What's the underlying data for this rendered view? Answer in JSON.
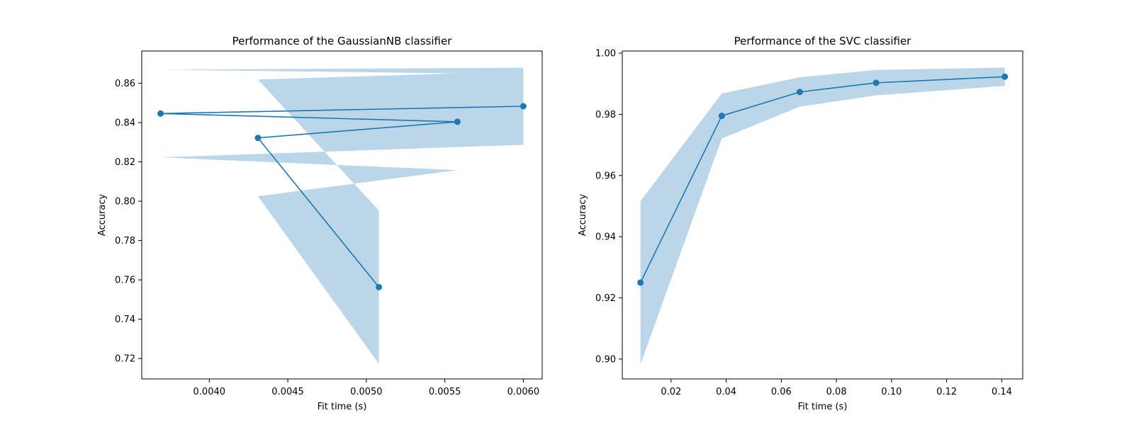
{
  "chart_data": [
    {
      "type": "line",
      "title": "Performance of the GaussianNB classifier",
      "xlabel": "Fit time (s)",
      "ylabel": "Accuracy",
      "xlim": [
        0.00357,
        0.00612
      ],
      "ylim": [
        0.7096,
        0.8764
      ],
      "xticks": [
        0.004,
        0.0045,
        0.005,
        0.0055,
        0.006
      ],
      "xtick_labels": [
        "0.0040",
        "0.0045",
        "0.0050",
        "0.0055",
        "0.0060"
      ],
      "yticks": [
        0.72,
        0.74,
        0.76,
        0.78,
        0.8,
        0.82,
        0.84,
        0.86
      ],
      "ytick_labels": [
        "0.72",
        "0.74",
        "0.76",
        "0.78",
        "0.80",
        "0.82",
        "0.84",
        "0.86"
      ],
      "grid": false,
      "color": "#1f77b4",
      "band_color": "#bad6e8",
      "x": [
        0.00508,
        0.00431,
        0.00558,
        0.00369,
        0.006
      ],
      "y": [
        0.7563,
        0.8322,
        0.8404,
        0.8446,
        0.8483
      ],
      "y_lower": [
        0.7173,
        0.8025,
        0.8158,
        0.8223,
        0.8287
      ],
      "y_upper": [
        0.7953,
        0.8619,
        0.865,
        0.8669,
        0.8679
      ]
    },
    {
      "type": "line",
      "title": "Performance of the SVC classifier",
      "xlabel": "Fit time (s)",
      "ylabel": "Accuracy",
      "xlim": [
        0.0023,
        0.1476
      ],
      "ylim": [
        0.8935,
        1.0007
      ],
      "xticks": [
        0.02,
        0.04,
        0.06,
        0.08,
        0.1,
        0.12,
        0.14
      ],
      "xtick_labels": [
        "0.02",
        "0.04",
        "0.06",
        "0.08",
        "0.10",
        "0.12",
        "0.14"
      ],
      "yticks": [
        0.9,
        0.92,
        0.94,
        0.96,
        0.98,
        1.0
      ],
      "ytick_labels": [
        "0.90",
        "0.92",
        "0.94",
        "0.96",
        "0.98",
        "1.00"
      ],
      "grid": false,
      "color": "#1f77b4",
      "band_color": "#bad6e8",
      "x": [
        0.0089,
        0.0384,
        0.0667,
        0.0944,
        0.1411
      ],
      "y": [
        0.925,
        0.9795,
        0.9873,
        0.9903,
        0.9923
      ],
      "y_lower": [
        0.8983,
        0.9721,
        0.9825,
        0.9862,
        0.9893
      ],
      "y_upper": [
        0.9516,
        0.9868,
        0.9921,
        0.9945,
        0.9953
      ]
    }
  ]
}
